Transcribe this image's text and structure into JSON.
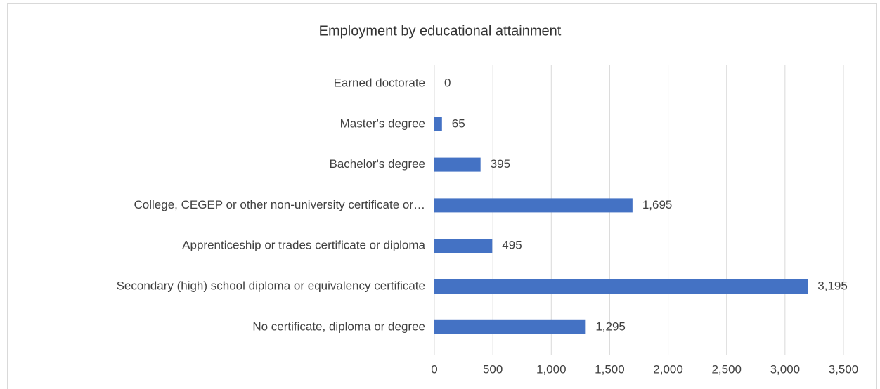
{
  "chart_data": {
    "type": "bar",
    "orientation": "horizontal",
    "title": "Employment by educational attainment",
    "categories": [
      "Earned doctorate",
      "Master's degree",
      "Bachelor's degree",
      "College, CEGEP or other non-university certificate or…",
      "Apprenticeship or trades certificate or diploma",
      "Secondary (high) school diploma or equivalency certificate",
      "No certificate, diploma or degree"
    ],
    "values": [
      0,
      65,
      395,
      1695,
      495,
      3195,
      1295
    ],
    "value_labels": [
      "0",
      "65",
      "395",
      "1,695",
      "495",
      "3,195",
      "1,295"
    ],
    "color": "#4472c4",
    "xlim": [
      0,
      3500
    ],
    "xticks": [
      0,
      500,
      {
        "value": 1000,
        "label": "1,000"
      },
      {
        "value": 1500,
        "label": "1,500"
      },
      {
        "value": 2000,
        "label": "2,000"
      },
      {
        "value": 2500,
        "label": "2,500"
      },
      {
        "value": 3000,
        "label": "3,000"
      },
      {
        "value": 3500,
        "label": "3,500"
      }
    ],
    "grid": true
  }
}
